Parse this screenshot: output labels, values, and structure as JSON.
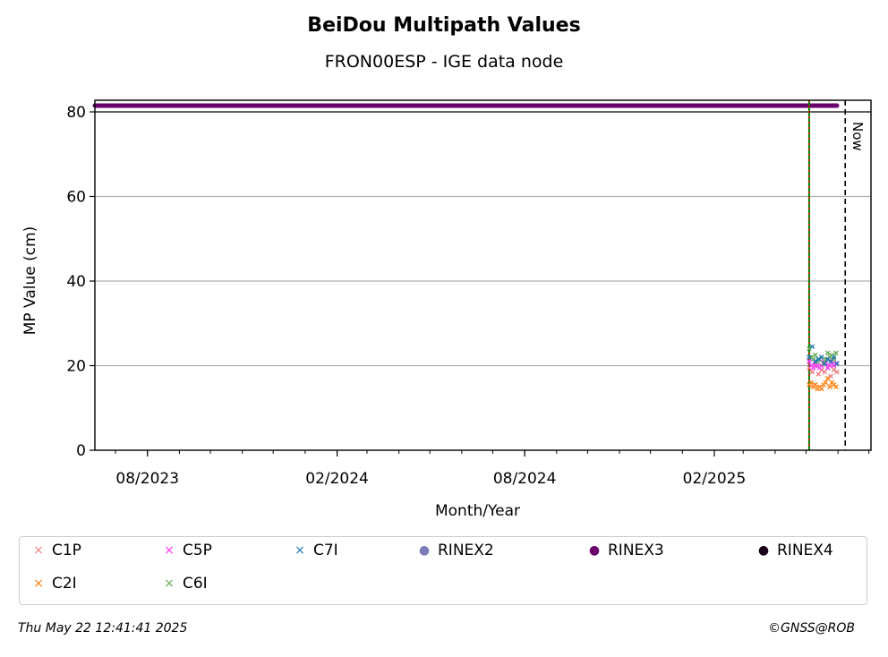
{
  "chart_data": {
    "type": "scatter",
    "title": "BeiDou Multipath Values",
    "subtitle": "FRON00ESP - IGE data node",
    "xlabel": "Month/Year",
    "ylabel": "MP Value (cm)",
    "xlim": [
      "2023-06-11",
      "2025-07-03"
    ],
    "ylim": [
      0,
      80
    ],
    "yticks": [
      0,
      20,
      40,
      60,
      80
    ],
    "xticks": [
      {
        "date": "2023-08-01",
        "label": "08/2023"
      },
      {
        "date": "2024-02-01",
        "label": "02/2024"
      },
      {
        "date": "2024-08-01",
        "label": "08/2024"
      },
      {
        "date": "2025-02-01",
        "label": "02/2025"
      }
    ],
    "grid": "y",
    "now_label": "Now",
    "now_date": "2025-06-08",
    "marker_line_date": "2025-05-04",
    "rinex_band": {
      "series": "RINEX3",
      "from": "2023-06-11",
      "to": "2025-05-31"
    },
    "series": [
      {
        "name": "C1P",
        "color": "#f08080",
        "marker": "x",
        "x": [
          "2025-05-04",
          "2025-05-07",
          "2025-05-10",
          "2025-05-13",
          "2025-05-16",
          "2025-05-19",
          "2025-05-22",
          "2025-05-25",
          "2025-05-28",
          "2025-05-31"
        ],
        "y": [
          19.5,
          18.5,
          20,
          18,
          19,
          18.5,
          19.5,
          17.5,
          19,
          18.5
        ]
      },
      {
        "name": "C2I",
        "color": "#ff7f0e",
        "marker": "x",
        "x": [
          "2025-05-04",
          "2025-05-06",
          "2025-05-08",
          "2025-05-10",
          "2025-05-12",
          "2025-05-14",
          "2025-05-16",
          "2025-05-18",
          "2025-05-20",
          "2025-05-22",
          "2025-05-24",
          "2025-05-26",
          "2025-05-28",
          "2025-05-30"
        ],
        "y": [
          15.5,
          16,
          15,
          15.5,
          14.5,
          15,
          14.5,
          15.5,
          16,
          17,
          15,
          16,
          15.5,
          15
        ]
      },
      {
        "name": "C5P",
        "color": "#ff33ff",
        "marker": "x",
        "x": [
          "2025-05-04",
          "2025-05-06",
          "2025-05-08",
          "2025-05-10",
          "2025-05-12",
          "2025-05-14",
          "2025-05-16",
          "2025-05-18",
          "2025-05-20",
          "2025-05-22",
          "2025-05-24",
          "2025-05-26",
          "2025-05-28",
          "2025-05-30"
        ],
        "y": [
          21,
          20,
          19.5,
          20.5,
          20,
          19.5,
          20,
          21,
          20.5,
          19.5,
          20,
          21,
          20,
          20.5
        ]
      },
      {
        "name": "C6I",
        "color": "#66aa55",
        "marker": "x",
        "x": [
          "2025-05-04",
          "2025-05-06",
          "2025-05-08",
          "2025-05-10",
          "2025-05-12",
          "2025-05-14",
          "2025-05-16",
          "2025-05-18",
          "2025-05-20",
          "2025-05-22",
          "2025-05-24",
          "2025-05-26",
          "2025-05-28",
          "2025-05-30"
        ],
        "y": [
          24,
          22,
          21.5,
          22.5,
          21,
          21.5,
          22,
          20.5,
          21.5,
          23,
          22,
          22.5,
          21.5,
          23
        ]
      },
      {
        "name": "C7I",
        "color": "#1f77b4",
        "marker": "x",
        "x": [
          "2025-05-04",
          "2025-05-07",
          "2025-05-10",
          "2025-05-13",
          "2025-05-16",
          "2025-05-19",
          "2025-05-22",
          "2025-05-25",
          "2025-05-28",
          "2025-05-31"
        ],
        "y": [
          22,
          24.5,
          21,
          21.5,
          22,
          20.5,
          21.5,
          21,
          22,
          20.5
        ]
      },
      {
        "name": "RINEX2",
        "color": "#7b7bb8",
        "marker": "o",
        "x": [],
        "y": []
      },
      {
        "name": "RINEX3",
        "color": "#6a006a",
        "marker": "o",
        "x": [],
        "y": []
      },
      {
        "name": "RINEX4",
        "color": "#1a0018",
        "marker": "o",
        "x": [],
        "y": []
      }
    ]
  },
  "legend": {
    "entries": [
      {
        "label": "C1P",
        "color": "#f08080",
        "glyph": "×"
      },
      {
        "label": "C5P",
        "color": "#ff33ff",
        "glyph": "×"
      },
      {
        "label": "C7I",
        "color": "#1f77b4",
        "glyph": "×"
      },
      {
        "label": "RINEX2",
        "color": "#7b7bb8",
        "glyph": "●"
      },
      {
        "label": "RINEX3",
        "color": "#6a006a",
        "glyph": "●"
      },
      {
        "label": "RINEX4",
        "color": "#1a0018",
        "glyph": "●"
      },
      {
        "label": "C2I",
        "color": "#ff7f0e",
        "glyph": "×"
      },
      {
        "label": "C6I",
        "color": "#66aa55",
        "glyph": "×"
      }
    ]
  },
  "footer": {
    "timestamp": "Thu May 22 12:41:41 2025",
    "copyright": "©GNSS@ROB"
  }
}
